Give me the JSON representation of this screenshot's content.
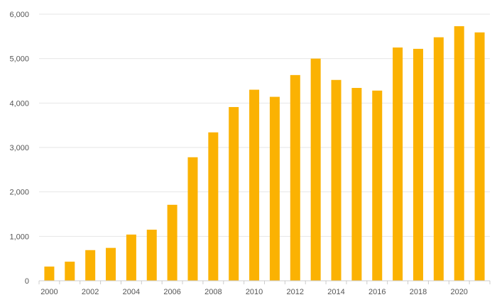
{
  "chart_data": {
    "type": "bar",
    "title": "",
    "xlabel": "",
    "ylabel": "",
    "categories": [
      "2000",
      "2001",
      "2002",
      "2003",
      "2004",
      "2005",
      "2006",
      "2007",
      "2008",
      "2009",
      "2010",
      "2011",
      "2012",
      "2013",
      "2014",
      "2015",
      "2016",
      "2017",
      "2018",
      "2019",
      "2020",
      "2021"
    ],
    "values": [
      320,
      430,
      690,
      740,
      1040,
      1150,
      1710,
      2780,
      3340,
      3910,
      4300,
      4140,
      4630,
      5000,
      4520,
      4340,
      4280,
      5250,
      5220,
      5480,
      5730,
      5590
    ],
    "x_tick_labels": [
      "2000",
      "",
      "2002",
      "",
      "2004",
      "",
      "2006",
      "",
      "2008",
      "",
      "2010",
      "",
      "2012",
      "",
      "2014",
      "",
      "2016",
      "",
      "2018",
      "",
      "2020",
      ""
    ],
    "y_ticks": [
      0,
      1000,
      2000,
      3000,
      4000,
      5000,
      6000
    ],
    "y_tick_labels": [
      "0",
      "1,000",
      "2,000",
      "3,000",
      "4,000",
      "5,000",
      "6,000"
    ],
    "ylim": [
      0,
      6000
    ],
    "grid": true,
    "legend": "none",
    "colors": {
      "bar": "#FBB202",
      "grid": "#E6E6E6",
      "axis": "#CCCCCC",
      "tick_text": "#555555"
    }
  }
}
